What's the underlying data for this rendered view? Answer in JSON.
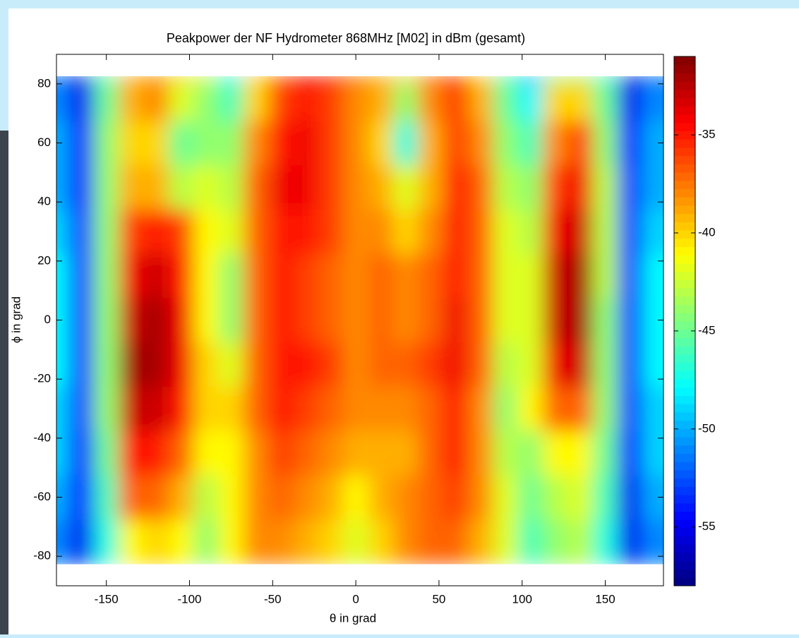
{
  "chart_data": {
    "type": "contour",
    "title": "Peakpower der NF Hydrometer 868MHz [M02] in dBm (gesamt)",
    "xlabel": "θ in grad",
    "ylabel": "ϕ in grad",
    "x": [
      -180,
      -165,
      -150,
      -135,
      -120,
      -105,
      -90,
      -75,
      -60,
      -45,
      -30,
      -15,
      0,
      15,
      30,
      45,
      60,
      75,
      90,
      105,
      120,
      135,
      150,
      165,
      180
    ],
    "y": [
      -90,
      -75,
      -60,
      -45,
      -30,
      -15,
      0,
      15,
      30,
      45,
      60,
      75,
      90
    ],
    "z": [
      [
        -52,
        -56,
        -48,
        -44,
        -46,
        -48,
        -46,
        -42,
        -39,
        -38,
        -39,
        -40,
        -41,
        -39,
        -39,
        -38,
        -38,
        -40,
        -44,
        -48,
        -45,
        -44,
        -48,
        -56,
        -52
      ],
      [
        -51,
        -55,
        -47,
        -41,
        -40,
        -41,
        -44,
        -41,
        -38,
        -38,
        -39,
        -40,
        -42,
        -40,
        -38,
        -37,
        -37,
        -39,
        -42,
        -46,
        -44,
        -43,
        -47,
        -55,
        -51
      ],
      [
        -50,
        -54,
        -46,
        -37,
        -37,
        -39,
        -43,
        -41,
        -38,
        -37,
        -38,
        -39,
        -41,
        -39,
        -38,
        -37,
        -36,
        -38,
        -42,
        -45,
        -43,
        -42,
        -46,
        -55,
        -50
      ],
      [
        -49,
        -54,
        -45,
        -35,
        -35,
        -37,
        -41,
        -41,
        -38,
        -36,
        -37,
        -38,
        -39,
        -39,
        -39,
        -37,
        -35,
        -38,
        -43,
        -44,
        -41,
        -41,
        -45,
        -54,
        -49
      ],
      [
        -49,
        -53,
        -44,
        -33,
        -33,
        -35,
        -40,
        -40,
        -37,
        -35,
        -36,
        -37,
        -38,
        -38,
        -38,
        -37,
        -35,
        -38,
        -44,
        -41,
        -37,
        -37,
        -44,
        -53,
        -49
      ],
      [
        -48,
        -53,
        -44,
        -32,
        -32,
        -34,
        -40,
        -42,
        -37,
        -35,
        -35,
        -36,
        -38,
        -37,
        -37,
        -36,
        -34,
        -37,
        -43,
        -42,
        -34,
        -33,
        -44,
        -53,
        -48
      ],
      [
        -48,
        -53,
        -44,
        -33,
        -32,
        -34,
        -41,
        -44,
        -37,
        -35,
        -36,
        -37,
        -38,
        -37,
        -38,
        -37,
        -34,
        -37,
        -42,
        -42,
        -33,
        -32,
        -44,
        -53,
        -48
      ],
      [
        -48,
        -53,
        -44,
        -34,
        -33,
        -35,
        -41,
        -44,
        -37,
        -35,
        -36,
        -37,
        -38,
        -37,
        -38,
        -37,
        -35,
        -37,
        -42,
        -42,
        -33,
        -32,
        -43,
        -53,
        -48
      ],
      [
        -49,
        -53,
        -44,
        -36,
        -35,
        -36,
        -41,
        -42,
        -37,
        -35,
        -35,
        -36,
        -38,
        -38,
        -40,
        -38,
        -35,
        -37,
        -42,
        -43,
        -34,
        -33,
        -43,
        -53,
        -49
      ],
      [
        -50,
        -54,
        -44,
        -39,
        -39,
        -43,
        -42,
        -43,
        -37,
        -34,
        -34,
        -36,
        -38,
        -39,
        -42,
        -39,
        -35,
        -37,
        -43,
        -44,
        -36,
        -34,
        -43,
        -53,
        -50
      ],
      [
        -50,
        -54,
        -44,
        -40,
        -40,
        -45,
        -44,
        -44,
        -38,
        -35,
        -34,
        -36,
        -38,
        -40,
        -47,
        -39,
        -36,
        -38,
        -44,
        -46,
        -38,
        -36,
        -44,
        -54,
        -50
      ],
      [
        -51,
        -55,
        -45,
        -39,
        -38,
        -42,
        -44,
        -46,
        -40,
        -36,
        -35,
        -36,
        -38,
        -39,
        -44,
        -38,
        -36,
        -39,
        -45,
        -48,
        -40,
        -40,
        -45,
        -55,
        -51
      ],
      [
        -52,
        -56,
        -46,
        -39,
        -38,
        -40,
        -42,
        -48,
        -40,
        -37,
        -34,
        -35,
        -37,
        -39,
        -40,
        -37,
        -36,
        -40,
        -46,
        -50,
        -45,
        -44,
        -47,
        -56,
        -52
      ]
    ],
    "xlim": [
      -180,
      185
    ],
    "ylim": [
      -90,
      90
    ],
    "xticks": [
      -150,
      -100,
      -50,
      0,
      50,
      100,
      150
    ],
    "yticks": [
      -80,
      -60,
      -40,
      -20,
      0,
      20,
      40,
      60,
      80
    ],
    "clim": [
      -58,
      -31
    ],
    "cticks": [
      -55,
      -50,
      -45,
      -40,
      -35
    ],
    "colormap": "jet"
  }
}
